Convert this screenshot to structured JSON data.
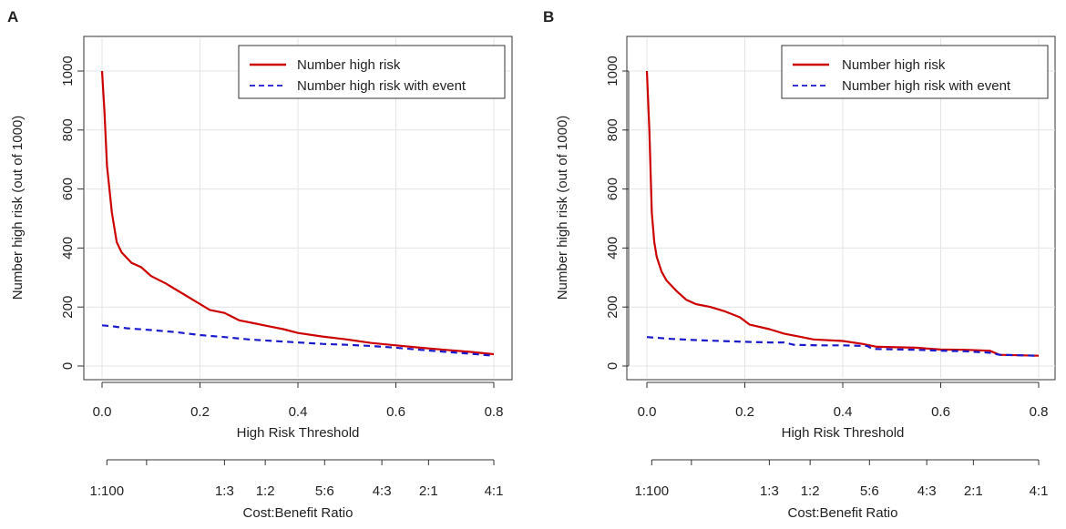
{
  "chart_data": [
    {
      "panel": "A",
      "type": "line",
      "xlabel": "High Risk Threshold",
      "ylabel": "Number high risk (out of 1000)",
      "xlim": [
        0,
        0.8
      ],
      "ylim": [
        0,
        1000
      ],
      "xticks": [
        0.0,
        0.2,
        0.4,
        0.6,
        0.8
      ],
      "xtick_labels": [
        "0.0",
        "0.2",
        "0.4",
        "0.6",
        "0.8"
      ],
      "yticks": [
        0,
        200,
        400,
        600,
        800,
        1000
      ],
      "ytick_labels": [
        "0",
        "200",
        "400",
        "600",
        "800",
        "1000"
      ],
      "grid": true,
      "legend_position": "top-right",
      "series": [
        {
          "name": "Number high risk",
          "color": "#cc0000",
          "style": "solid",
          "x": [
            0.0,
            0.005,
            0.01,
            0.02,
            0.03,
            0.04,
            0.06,
            0.08,
            0.1,
            0.13,
            0.16,
            0.19,
            0.22,
            0.25,
            0.28,
            0.31,
            0.34,
            0.37,
            0.4,
            0.45,
            0.5,
            0.55,
            0.6,
            0.65,
            0.7,
            0.75,
            0.8
          ],
          "values": [
            1000,
            860,
            680,
            520,
            420,
            385,
            350,
            335,
            305,
            280,
            250,
            220,
            190,
            180,
            155,
            145,
            135,
            125,
            112,
            100,
            90,
            78,
            70,
            62,
            55,
            48,
            40
          ]
        },
        {
          "name": "Number high risk with event",
          "color": "#1a1acc",
          "style": "dashed",
          "x": [
            0.0,
            0.02,
            0.05,
            0.1,
            0.15,
            0.2,
            0.25,
            0.3,
            0.35,
            0.4,
            0.45,
            0.5,
            0.55,
            0.6,
            0.65,
            0.7,
            0.75,
            0.8
          ],
          "values": [
            138,
            135,
            128,
            122,
            115,
            105,
            98,
            90,
            85,
            80,
            75,
            72,
            68,
            62,
            55,
            48,
            42,
            35
          ]
        }
      ],
      "cost_benefit_axis": {
        "label": "Cost:Benefit Ratio",
        "tick_positions": [
          0.0099,
          0.0909,
          0.25,
          0.3333,
          0.4545,
          0.5714,
          0.6667,
          0.8
        ],
        "labels": [
          {
            "text": "1:100",
            "at": 0.0099
          },
          {
            "text": "1:3",
            "at": 0.25
          },
          {
            "text": "1:2",
            "at": 0.3333
          },
          {
            "text": "5:6",
            "at": 0.4545
          },
          {
            "text": "4:3",
            "at": 0.5714
          },
          {
            "text": "2:1",
            "at": 0.6667
          },
          {
            "text": "4:1",
            "at": 0.8
          }
        ]
      }
    },
    {
      "panel": "B",
      "type": "line",
      "xlabel": "High Risk Threshold",
      "ylabel": "Number high risk (out of 1000)",
      "xlim": [
        0,
        0.8
      ],
      "ylim": [
        0,
        1000
      ],
      "xticks": [
        0.0,
        0.2,
        0.4,
        0.6,
        0.8
      ],
      "xtick_labels": [
        "0.0",
        "0.2",
        "0.4",
        "0.6",
        "0.8"
      ],
      "yticks": [
        0,
        200,
        400,
        600,
        800,
        1000
      ],
      "ytick_labels": [
        "0",
        "200",
        "400",
        "600",
        "800",
        "1000"
      ],
      "grid": true,
      "legend_position": "top-right",
      "series": [
        {
          "name": "Number high risk",
          "color": "#cc0000",
          "style": "solid",
          "x": [
            0.0,
            0.005,
            0.01,
            0.015,
            0.02,
            0.03,
            0.04,
            0.06,
            0.08,
            0.1,
            0.13,
            0.16,
            0.19,
            0.21,
            0.25,
            0.28,
            0.31,
            0.34,
            0.4,
            0.44,
            0.47,
            0.55,
            0.6,
            0.65,
            0.7,
            0.72,
            0.8
          ],
          "values": [
            1000,
            800,
            520,
            420,
            370,
            320,
            290,
            255,
            225,
            210,
            200,
            185,
            165,
            140,
            125,
            110,
            100,
            90,
            85,
            75,
            65,
            62,
            56,
            55,
            52,
            38,
            35
          ]
        },
        {
          "name": "Number high risk with event",
          "color": "#1a1acc",
          "style": "dashed",
          "x": [
            0.0,
            0.05,
            0.1,
            0.15,
            0.2,
            0.25,
            0.28,
            0.3,
            0.35,
            0.4,
            0.45,
            0.46,
            0.55,
            0.6,
            0.65,
            0.7,
            0.72,
            0.8
          ],
          "values": [
            98,
            92,
            88,
            85,
            82,
            80,
            80,
            72,
            70,
            70,
            68,
            58,
            55,
            52,
            50,
            45,
            38,
            35
          ]
        }
      ],
      "cost_benefit_axis": {
        "label": "Cost:Benefit Ratio",
        "tick_positions": [
          0.0099,
          0.0909,
          0.25,
          0.3333,
          0.4545,
          0.5714,
          0.6667,
          0.8
        ],
        "labels": [
          {
            "text": "1:100",
            "at": 0.0099
          },
          {
            "text": "1:3",
            "at": 0.25
          },
          {
            "text": "1:2",
            "at": 0.3333
          },
          {
            "text": "5:6",
            "at": 0.4545
          },
          {
            "text": "4:3",
            "at": 0.5714
          },
          {
            "text": "2:1",
            "at": 0.6667
          },
          {
            "text": "4:1",
            "at": 0.8
          }
        ]
      }
    }
  ]
}
